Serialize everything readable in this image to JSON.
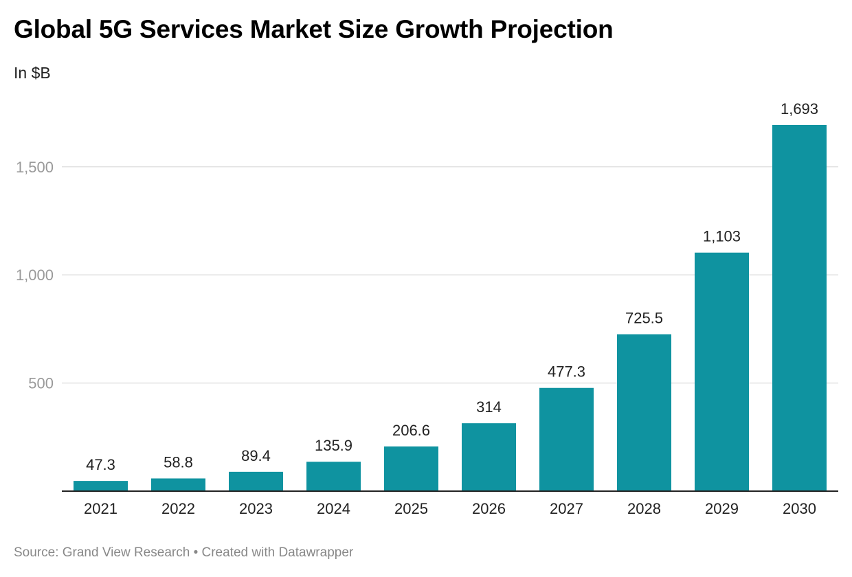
{
  "title": "Global 5G Services Market Size Growth Projection",
  "subtitle": "In $B",
  "footer": {
    "source": "Source: Grand View Research",
    "separator": "•",
    "credit": "Created with Datawrapper"
  },
  "colors": {
    "bar": "#0f93a0",
    "grid": "#e3e3e3",
    "axis": "#222222",
    "tick_label": "#999999",
    "value_label": "#222222"
  },
  "chart_data": {
    "type": "bar",
    "title": "Global 5G Services Market Size Growth Projection",
    "subtitle": "In $B",
    "categories": [
      "2021",
      "2022",
      "2023",
      "2024",
      "2025",
      "2026",
      "2027",
      "2028",
      "2029",
      "2030"
    ],
    "values": [
      47.3,
      58.8,
      89.4,
      135.9,
      206.6,
      314,
      477.3,
      725.5,
      1103,
      1693
    ],
    "value_labels": [
      "47.3",
      "58.8",
      "89.4",
      "135.9",
      "206.6",
      "314",
      "477.3",
      "725.5",
      "1,103",
      "1,693"
    ],
    "xlabel": "",
    "ylabel": "",
    "ylim": [
      0,
      1693
    ],
    "yticks": [
      500,
      1000,
      1500
    ],
    "ytick_labels": [
      "500",
      "1,000",
      "1,500"
    ],
    "grid": true,
    "legend": "none"
  }
}
